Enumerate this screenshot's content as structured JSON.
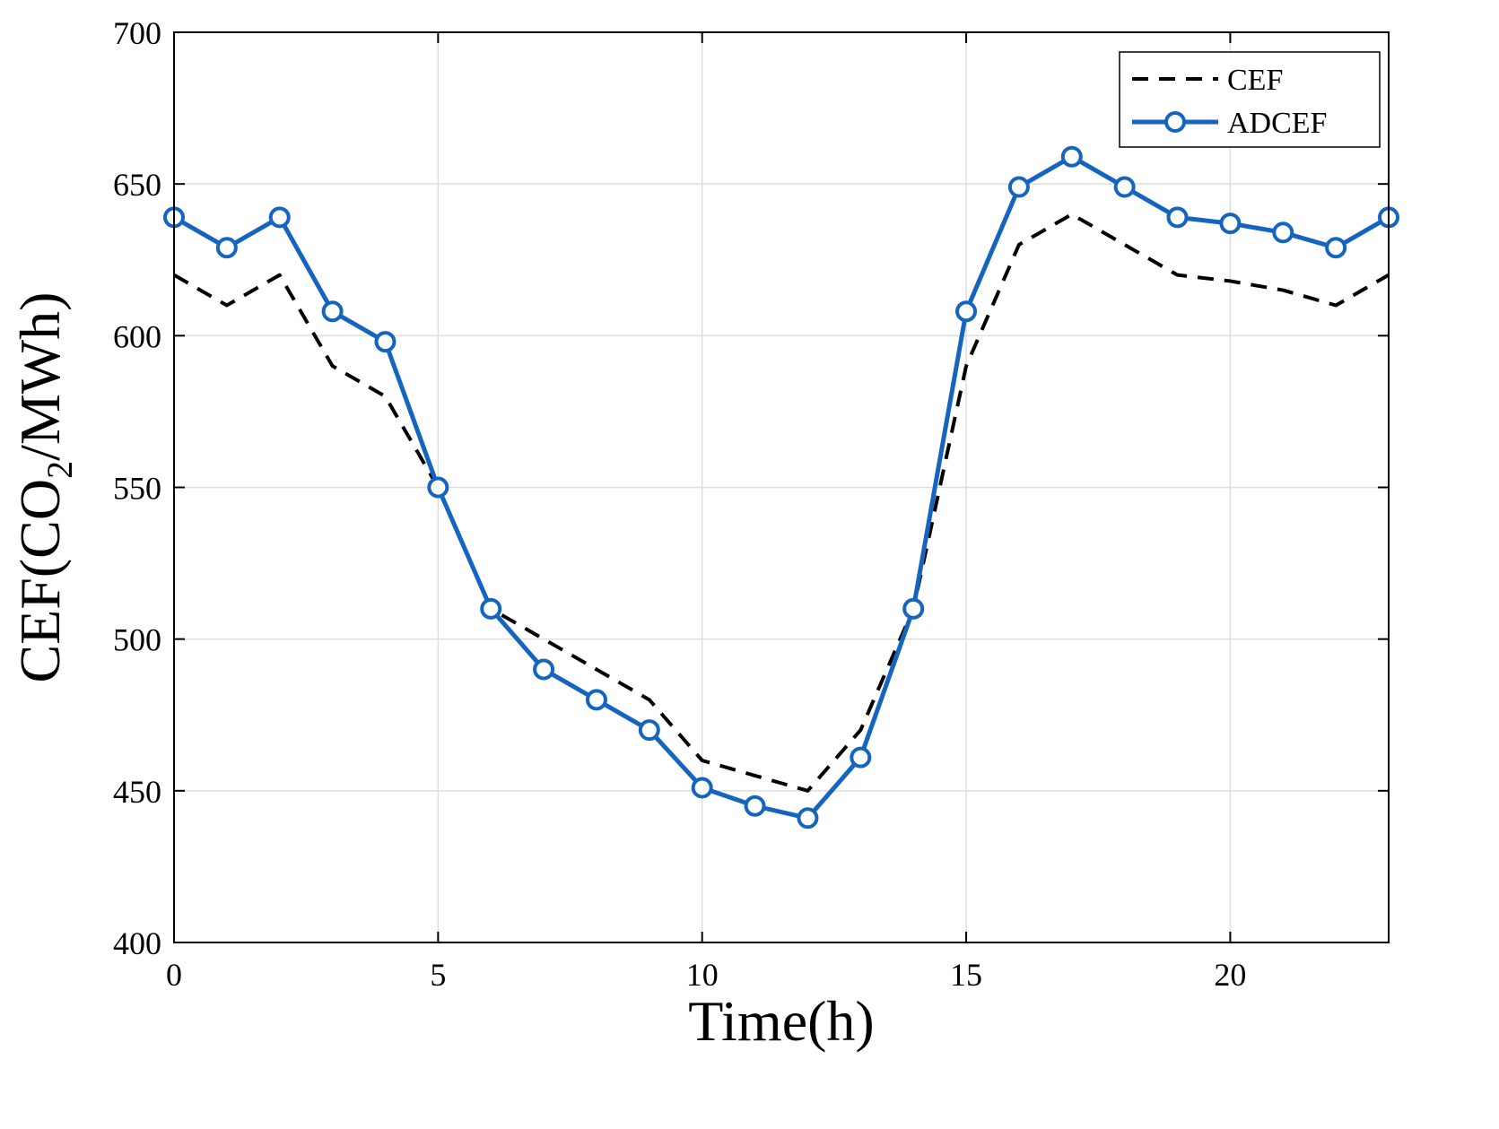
{
  "chart_data": {
    "type": "line",
    "title": "",
    "xlabel": "Time(h)",
    "ylabel_main": "CEF(CO",
    "ylabel_sub": "2",
    "ylabel_tail": "/MWh)",
    "xlim": [
      0,
      23
    ],
    "ylim": [
      400,
      700
    ],
    "xticks": [
      0,
      5,
      10,
      15,
      20
    ],
    "yticks": [
      400,
      450,
      500,
      550,
      600,
      650,
      700
    ],
    "grid": true,
    "legend_position": "top-right",
    "x": [
      0,
      1,
      2,
      3,
      4,
      5,
      6,
      7,
      8,
      9,
      10,
      11,
      12,
      13,
      14,
      15,
      16,
      17,
      18,
      19,
      20,
      21,
      22,
      23
    ],
    "series": [
      {
        "name": "CEF",
        "style": "dashed",
        "color": "#000000",
        "markers": false,
        "values": [
          620,
          610,
          620,
          590,
          580,
          550,
          510,
          500,
          490,
          480,
          460,
          455,
          450,
          470,
          510,
          590,
          630,
          640,
          630,
          620,
          618,
          615,
          610,
          620
        ]
      },
      {
        "name": "ADCEF",
        "style": "solid",
        "color": "#1565C0",
        "markers": true,
        "values": [
          639,
          629,
          639,
          608,
          598,
          550,
          510,
          490,
          480,
          470,
          451,
          445,
          441,
          461,
          510,
          608,
          649,
          659,
          649,
          639,
          637,
          634,
          629,
          639
        ]
      }
    ]
  }
}
